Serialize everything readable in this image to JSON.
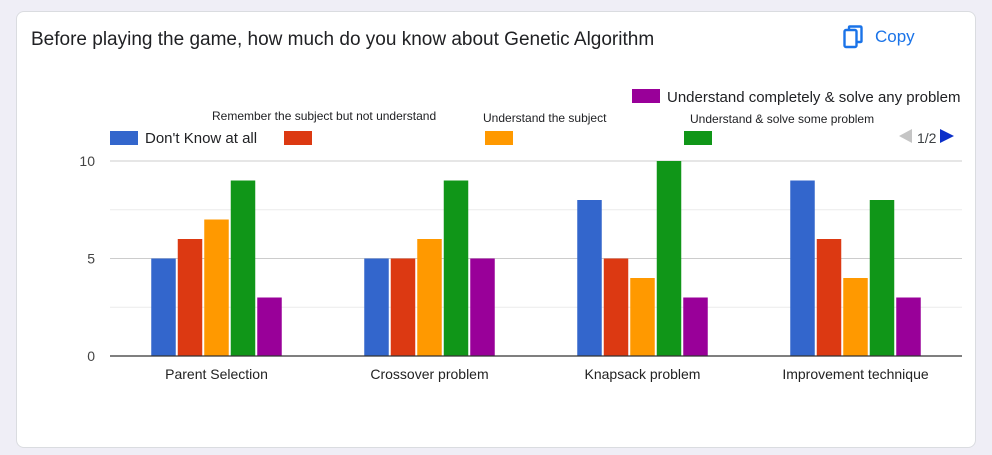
{
  "title": "Before playing the game, how much do you know about Genetic Algorithm",
  "copy_label": "Copy",
  "pager": {
    "text": "1/2"
  },
  "colors": {
    "accent": "#1a73e8",
    "series": [
      "#3366cc",
      "#dc3912",
      "#ff9900",
      "#109618",
      "#990099"
    ],
    "prev_arrow": "#c5c5c5",
    "next_arrow": "#0b2fc9"
  },
  "icons": {
    "copy": "copy-icon",
    "prev": "left-triangle-icon",
    "next": "right-triangle-icon"
  },
  "chart_data": {
    "type": "bar",
    "categories": [
      "Parent Selection",
      "Crossover problem",
      "Knapsack problem",
      "Improvement technique"
    ],
    "series": [
      {
        "name": "Don't Know at all",
        "values": [
          5,
          5,
          8,
          9
        ]
      },
      {
        "name": "Remember the subject but not understand",
        "values": [
          6,
          5,
          5,
          6
        ]
      },
      {
        "name": "Understand the subject",
        "values": [
          7,
          6,
          4,
          4
        ]
      },
      {
        "name": "Understand & solve some problem",
        "values": [
          9,
          9,
          10,
          8
        ]
      },
      {
        "name": "Understand completely & solve any problem",
        "values": [
          3,
          5,
          3,
          3
        ]
      }
    ],
    "ylim": [
      0,
      10
    ],
    "yticks": [
      "0",
      "5",
      "10"
    ],
    "grid": true,
    "legend": "top"
  }
}
